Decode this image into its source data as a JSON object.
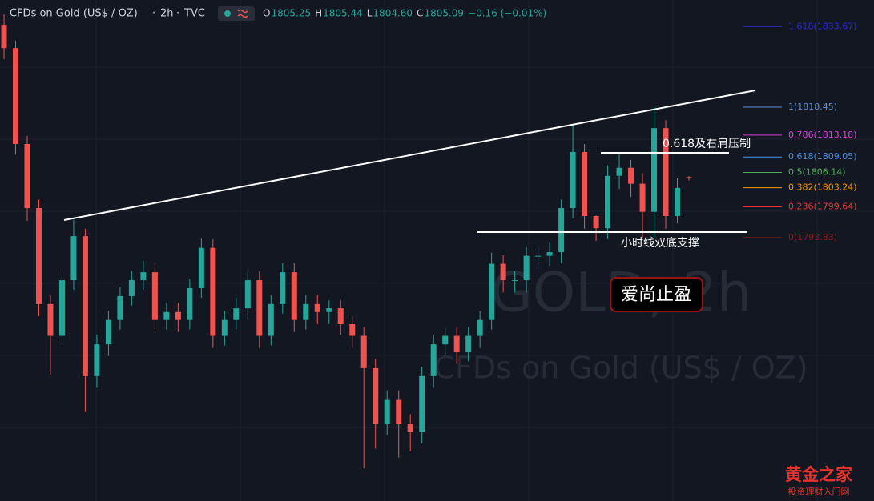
{
  "chart_data": {
    "type": "candlestick",
    "title": "CFDs on Gold (US$ / OZ)",
    "interval": "2h",
    "source": "TVC",
    "quote": [
      [
        "O",
        "1805.25"
      ],
      [
        "H",
        "1805.44"
      ],
      [
        "L",
        "1804.60"
      ],
      [
        "C",
        "1805.09"
      ]
    ],
    "change": "−0.16 (−0.01%)",
    "watermark": "GOLD, 2h",
    "up_color": "#26a69a",
    "down_color": "#ef5350",
    "ylim": [
      1744.1,
      1838.7
    ],
    "open": [
      1834.0,
      1829.6,
      1811.5,
      1799.4,
      1781.3,
      1775.3,
      1785.8,
      1794.1,
      1767.7,
      1773.7,
      1778.3,
      1782.8,
      1785.8,
      1787.3,
      1778.3,
      1779.8,
      1778.3,
      1784.3,
      1791.9,
      1775.3,
      1778.3,
      1780.5,
      1785.8,
      1775.3,
      1781.3,
      1787.3,
      1778.3,
      1781.3,
      1779.8,
      1780.5,
      1777.5,
      1775.3,
      1769.2,
      1758.6,
      1763.2,
      1758.6,
      1757.1,
      1767.7,
      1773.7,
      1775.3,
      1772.2,
      1775.3,
      1778.3,
      1788.9,
      1785.8,
      1785.8,
      1790.4,
      1790.4,
      1791.1,
      1799.4,
      1810.0,
      1797.9,
      1795.6,
      1805.5,
      1807.0,
      1804.0,
      1798.7,
      1814.5,
      1797.9,
      1805.25
    ],
    "high": [
      1836.0,
      1831.0,
      1813.0,
      1801.0,
      1783.0,
      1787.5,
      1797.2,
      1795.5,
      1775.5,
      1780.0,
      1784.5,
      1787.5,
      1789.5,
      1789.0,
      1781.5,
      1781.5,
      1786.0,
      1793.7,
      1793.5,
      1780.0,
      1782.5,
      1787.5,
      1787.5,
      1783.0,
      1789.0,
      1789.0,
      1783.0,
      1783.0,
      1782.0,
      1782.0,
      1779.0,
      1777.0,
      1771.0,
      1765.0,
      1765.0,
      1760.5,
      1769.5,
      1775.5,
      1777.0,
      1777.0,
      1777.0,
      1780.0,
      1791.0,
      1790.5,
      1787.5,
      1792.0,
      1792.0,
      1793.0,
      1801.0,
      1815.3,
      1811.5,
      1798.0,
      1807.5,
      1809.5,
      1808.5,
      1806.0,
      1818.45,
      1816.0,
      1805.0,
      1805.44
    ],
    "low": [
      1827.5,
      1809.5,
      1797.0,
      1779.0,
      1768.0,
      1773.5,
      1784.0,
      1760.9,
      1765.5,
      1771.5,
      1776.5,
      1781.0,
      1784.0,
      1776.0,
      1776.5,
      1776.0,
      1776.5,
      1782.5,
      1773.0,
      1773.5,
      1776.5,
      1778.5,
      1773.0,
      1773.5,
      1779.5,
      1776.0,
      1776.5,
      1777.5,
      1777.5,
      1775.5,
      1773.0,
      1750.3,
      1754.0,
      1756.5,
      1752.3,
      1753.5,
      1755.0,
      1765.5,
      1771.5,
      1770.0,
      1770.5,
      1773.0,
      1776.5,
      1783.5,
      1783.5,
      1783.5,
      1788.0,
      1788.5,
      1789.0,
      1797.5,
      1795.5,
      1793.2,
      1793.5,
      1803.0,
      1801.5,
      1793.8,
      1793.83,
      1795.5,
      1796.5,
      1804.6
    ],
    "close": [
      1829.6,
      1811.5,
      1799.4,
      1781.3,
      1775.3,
      1785.8,
      1794.1,
      1767.7,
      1773.7,
      1778.3,
      1782.8,
      1785.8,
      1787.3,
      1778.3,
      1779.8,
      1778.3,
      1784.3,
      1791.9,
      1775.3,
      1778.3,
      1780.5,
      1785.8,
      1775.3,
      1781.3,
      1787.3,
      1778.3,
      1781.3,
      1779.8,
      1780.5,
      1777.5,
      1775.3,
      1769.2,
      1758.6,
      1763.2,
      1758.6,
      1757.1,
      1767.7,
      1773.7,
      1775.3,
      1772.2,
      1775.3,
      1778.3,
      1788.9,
      1785.8,
      1785.8,
      1790.4,
      1790.4,
      1791.1,
      1799.4,
      1810.0,
      1797.9,
      1795.6,
      1805.5,
      1807.0,
      1804.0,
      1798.7,
      1814.5,
      1797.9,
      1803.2,
      1805.09
    ],
    "fib_levels": [
      {
        "label": "1.618(1833.67)",
        "value": 1833.67,
        "color": "#2b2bd8"
      },
      {
        "label": "1(1818.45)",
        "value": 1818.45,
        "color": "#5b8fd6"
      },
      {
        "label": "0.786(1813.18)",
        "value": 1813.18,
        "color": "#e040e0"
      },
      {
        "label": "0.618(1809.05)",
        "value": 1809.05,
        "color": "#4a90e2"
      },
      {
        "label": "0.5(1806.14)",
        "value": 1806.14,
        "color": "#4caf50"
      },
      {
        "label": "0.382(1803.24)",
        "value": 1803.24,
        "color": "#ff9800"
      },
      {
        "label": "0.236(1799.64)",
        "value": 1799.64,
        "color": "#e53935"
      },
      {
        "label": "0(1793.83)",
        "value": 1793.83,
        "color": "#8b1a1a"
      }
    ],
    "annotations": [
      "0.618及右肩压制",
      "小时线双底支撑",
      "爱尚止盈"
    ]
  },
  "logo": {
    "title": "黄金之家",
    "subtitle": "投资理财入门网"
  }
}
